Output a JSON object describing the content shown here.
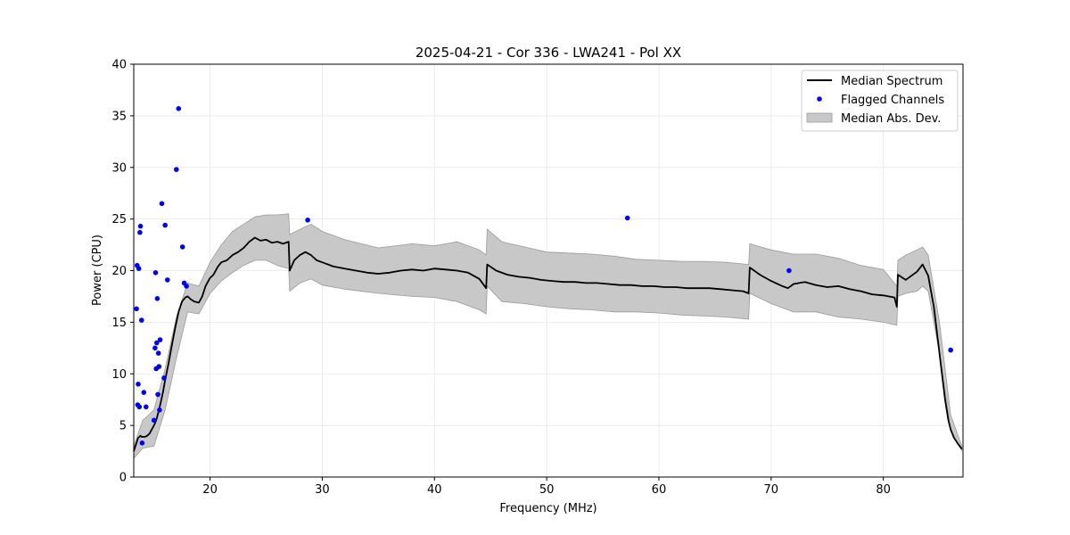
{
  "chart_data": {
    "type": "line",
    "title": "2025-04-21 - Cor 336 - LWA241 - Pol XX",
    "xlabel": "Frequency (MHz)",
    "ylabel": "Power (CPU)",
    "xlim": [
      13.2,
      87.1
    ],
    "ylim": [
      0,
      40
    ],
    "xticks": [
      20,
      30,
      40,
      50,
      60,
      70,
      80
    ],
    "yticks": [
      0,
      5,
      10,
      15,
      20,
      25,
      30,
      35,
      40
    ],
    "grid": true,
    "legend_position": "top-right",
    "colors": {
      "median": "#000000",
      "flagged": "#0000ff",
      "band": "#c8c8c8",
      "band_edge": "#9a9a9a",
      "grid": "#e6e6e6"
    },
    "series": [
      {
        "name": "Median Spectrum",
        "style": "line",
        "x": [
          13.2,
          13.35,
          13.5,
          13.6,
          13.7,
          13.8,
          13.9,
          14.0,
          14.2,
          14.4,
          14.6,
          14.8,
          15.0,
          15.2,
          15.4,
          15.6,
          15.8,
          16.0,
          16.3,
          16.6,
          16.9,
          17.2,
          17.5,
          17.8,
          18.0,
          18.3,
          18.6,
          19.0,
          19.3,
          19.6,
          20.0,
          20.3,
          20.7,
          21.0,
          21.5,
          22.0,
          22.5,
          23.0,
          23.5,
          24.0,
          24.5,
          25.0,
          25.5,
          26.0,
          26.5,
          27.0,
          27.1,
          27.5,
          28.0,
          28.5,
          29.0,
          29.5,
          30.0,
          31.0,
          32.0,
          33.0,
          34.0,
          35.0,
          36.0,
          37.0,
          38.0,
          39.0,
          40.0,
          41.0,
          42.0,
          43.0,
          44.0,
          44.6,
          44.7,
          45.5,
          46.5,
          47.5,
          48.5,
          49.5,
          50.5,
          51.5,
          52.5,
          53.5,
          54.5,
          55.5,
          56.5,
          57.5,
          58.5,
          59.5,
          60.5,
          61.5,
          62.5,
          63.5,
          64.5,
          65.5,
          66.5,
          67.5,
          68.0,
          68.1,
          69.0,
          70.0,
          71.0,
          71.5,
          72.0,
          73.0,
          74.0,
          75.0,
          76.0,
          77.0,
          78.0,
          79.0,
          80.0,
          81.0,
          81.2,
          81.3,
          82.0,
          82.5,
          83.0,
          83.5,
          84.0,
          84.5,
          85.0,
          85.5,
          85.8,
          86.0,
          86.3,
          86.6,
          87.0
        ],
        "y": [
          2.5,
          3.0,
          3.5,
          3.8,
          3.9,
          4.0,
          3.9,
          3.9,
          3.9,
          4.0,
          4.2,
          4.6,
          5.0,
          5.5,
          6.3,
          7.2,
          8.2,
          9.4,
          11.0,
          12.8,
          14.5,
          16.0,
          17.0,
          17.4,
          17.5,
          17.2,
          17.0,
          16.9,
          17.5,
          18.5,
          19.3,
          19.6,
          20.4,
          20.8,
          21.0,
          21.5,
          21.8,
          22.2,
          22.8,
          23.2,
          22.9,
          23.0,
          22.7,
          22.8,
          22.6,
          22.8,
          20.0,
          21.0,
          21.5,
          21.8,
          21.5,
          21.0,
          20.8,
          20.4,
          20.2,
          20.0,
          19.8,
          19.7,
          19.8,
          20.0,
          20.1,
          20.0,
          20.2,
          20.1,
          20.0,
          19.8,
          19.2,
          18.3,
          20.6,
          20.0,
          19.6,
          19.4,
          19.3,
          19.1,
          19.0,
          18.9,
          18.9,
          18.8,
          18.8,
          18.7,
          18.6,
          18.6,
          18.5,
          18.5,
          18.4,
          18.4,
          18.3,
          18.3,
          18.3,
          18.2,
          18.1,
          18.0,
          17.8,
          20.3,
          19.6,
          19.0,
          18.5,
          18.3,
          18.7,
          18.9,
          18.6,
          18.4,
          18.5,
          18.2,
          18.0,
          17.7,
          17.6,
          17.4,
          16.5,
          19.6,
          19.1,
          19.5,
          19.9,
          20.6,
          19.5,
          16.5,
          12.0,
          7.5,
          5.5,
          4.6,
          3.8,
          3.3,
          2.7
        ]
      },
      {
        "name": "Flagged Channels",
        "style": "scatter",
        "x": [
          13.45,
          13.5,
          13.55,
          13.6,
          13.65,
          13.7,
          13.75,
          13.8,
          13.9,
          13.95,
          14.1,
          14.3,
          15.0,
          15.1,
          15.15,
          15.2,
          15.25,
          15.3,
          15.35,
          15.4,
          15.45,
          15.5,
          15.55,
          15.7,
          15.9,
          16.0,
          16.2,
          17.0,
          17.2,
          17.55,
          17.7,
          17.9,
          28.7,
          57.2,
          71.6,
          86.0
        ],
        "y": [
          16.3,
          20.5,
          7.0,
          9.0,
          20.2,
          6.8,
          23.7,
          24.3,
          15.2,
          3.3,
          8.2,
          6.8,
          5.5,
          12.5,
          19.8,
          10.5,
          13.0,
          17.3,
          8.0,
          12.0,
          10.7,
          6.5,
          13.3,
          26.5,
          9.6,
          24.4,
          19.1,
          29.8,
          35.7,
          22.3,
          18.8,
          18.5,
          24.9,
          25.1,
          20.0,
          12.3
        ]
      },
      {
        "name": "Median Abs. Dev.",
        "style": "band",
        "x": [
          13.2,
          14.0,
          15.0,
          16.0,
          17.0,
          18.0,
          19.0,
          20.0,
          21.0,
          22.0,
          23.0,
          24.0,
          25.0,
          26.0,
          27.0,
          27.1,
          28.0,
          29.0,
          30.0,
          32.0,
          35.0,
          38.0,
          40.0,
          42.0,
          44.0,
          44.6,
          44.7,
          46.0,
          48.0,
          50.0,
          52.0,
          54.0,
          56.0,
          58.0,
          60.0,
          62.0,
          64.0,
          66.0,
          68.0,
          68.1,
          70.0,
          72.0,
          74.0,
          76.0,
          78.0,
          80.0,
          81.2,
          81.3,
          82.0,
          83.0,
          83.5,
          84.0,
          85.0,
          86.0,
          87.0
        ],
        "upper": [
          3.0,
          5.5,
          6.5,
          10.5,
          15.5,
          18.8,
          18.5,
          20.8,
          22.5,
          23.8,
          24.5,
          25.2,
          25.4,
          25.4,
          25.5,
          23.5,
          24.0,
          24.5,
          23.8,
          23.0,
          22.2,
          22.6,
          22.4,
          22.8,
          22.0,
          21.5,
          24.0,
          22.8,
          22.3,
          21.8,
          21.7,
          21.6,
          21.4,
          21.1,
          21.0,
          20.9,
          20.9,
          20.8,
          20.6,
          22.6,
          22.0,
          21.6,
          21.6,
          21.2,
          20.5,
          20.1,
          18.5,
          21.0,
          21.5,
          22.0,
          22.3,
          21.5,
          15.0,
          6.0,
          3.0
        ],
        "lower": [
          1.8,
          2.8,
          3.0,
          6.5,
          11.5,
          16.0,
          15.8,
          17.8,
          19.0,
          19.8,
          20.5,
          21.0,
          21.0,
          20.5,
          20.2,
          18.0,
          18.8,
          19.2,
          18.6,
          18.2,
          17.8,
          17.5,
          17.4,
          17.0,
          16.2,
          15.8,
          18.5,
          17.0,
          16.8,
          16.5,
          16.3,
          16.2,
          16.0,
          16.0,
          15.9,
          15.7,
          15.6,
          15.5,
          15.3,
          17.8,
          16.8,
          16.0,
          16.0,
          15.5,
          15.3,
          15.0,
          14.7,
          17.5,
          17.8,
          18.0,
          18.5,
          18.0,
          12.0,
          4.5,
          2.6
        ]
      }
    ]
  }
}
